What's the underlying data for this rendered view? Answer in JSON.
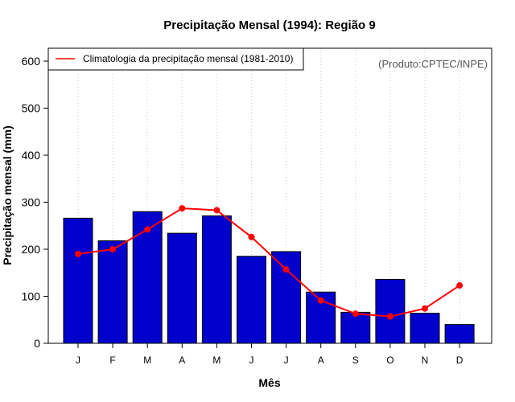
{
  "chart_data": {
    "type": "bar",
    "title": "Precipitação Mensal (1994): Região 9",
    "xlabel": "Mês",
    "ylabel": "Precipitação mensal (mm)",
    "ylim": [
      0,
      600
    ],
    "yticks": [
      0,
      100,
      200,
      300,
      400,
      500,
      600
    ],
    "categories": [
      "J",
      "F",
      "M",
      "A",
      "M",
      "J",
      "J",
      "A",
      "S",
      "O",
      "N",
      "D"
    ],
    "series": [
      {
        "name": "Precipitação mensal 1994",
        "type": "bar",
        "color": "#0000cc",
        "values": [
          266,
          218,
          280,
          234,
          271,
          185,
          195,
          109,
          66,
          136,
          64,
          40
        ]
      },
      {
        "name": "Climatologia da precipitação mensal (1981-2010)",
        "type": "line",
        "color": "#ff0000",
        "values": [
          190,
          200,
          242,
          287,
          283,
          226,
          157,
          91,
          63,
          57,
          74,
          123
        ]
      }
    ],
    "legend": {
      "position": "top-left",
      "entries": [
        "Climatologia da precipitação mensal (1981-2010)"
      ]
    },
    "annotation": "(Produto:CPTEC/INPE)",
    "grid": "vertical dotted"
  }
}
